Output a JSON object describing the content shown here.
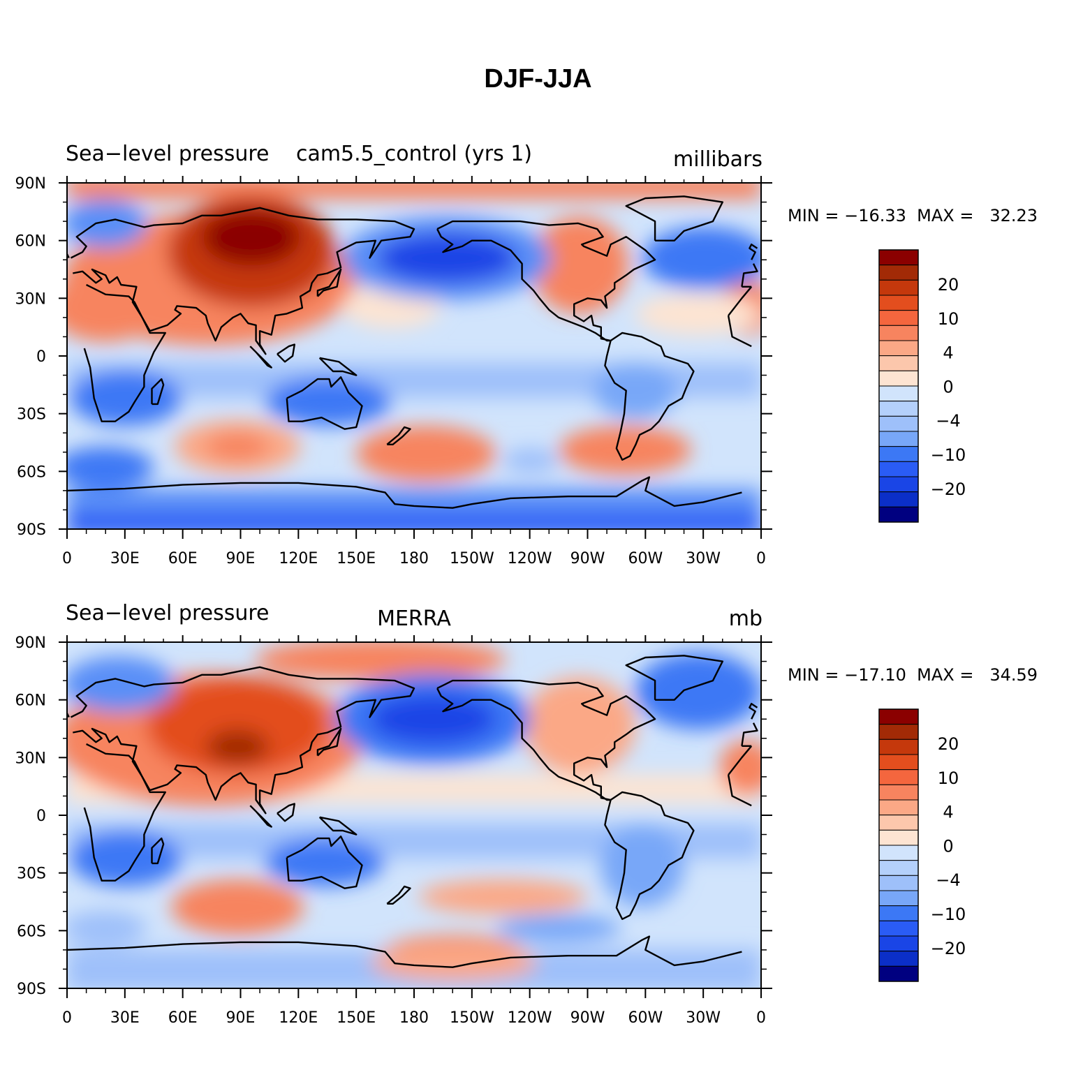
{
  "figure": {
    "title": "DJF-JJA"
  },
  "colors": {
    "levels": [
      "#000080",
      "#0000b2",
      "#0b2fc8",
      "#1a45e6",
      "#2a5cf5",
      "#3c78f5",
      "#5a8ff7",
      "#78a7f8",
      "#9ec0fa",
      "#d1e4fc",
      "#fde4d2",
      "#fcc7ac",
      "#fba886",
      "#f7845f",
      "#f4663e",
      "#e34e1e",
      "#c5380c",
      "#a22a06",
      "#8b0000"
    ],
    "coast": "#000000"
  },
  "panels": [
    {
      "id": "model",
      "left_title": "Sea−level pressure",
      "center_title": "cam5.5_control (yrs 1)",
      "right_title": "millibars",
      "stats": "MIN = −16.33  MAX =   32.23",
      "colorbar": {
        "labels": [
          "20",
          "10",
          "4",
          "0",
          "−4",
          "−10",
          "−20"
        ]
      }
    },
    {
      "id": "obs",
      "left_title": "Sea−level pressure",
      "center_title": "MERRA",
      "right_title": "mb",
      "stats": "MIN = −17.10  MAX =   34.59",
      "colorbar": {
        "labels": [
          "20",
          "10",
          "4",
          "0",
          "−4",
          "−10",
          "−20"
        ]
      }
    }
  ],
  "axes": {
    "x_ticks": [
      "0",
      "30E",
      "60E",
      "90E",
      "120E",
      "150E",
      "180",
      "150W",
      "120W",
      "90W",
      "60W",
      "30W",
      "0"
    ],
    "y_ticks": [
      "90N",
      "60N",
      "30N",
      "0",
      "30S",
      "60S",
      "90S"
    ]
  }
}
